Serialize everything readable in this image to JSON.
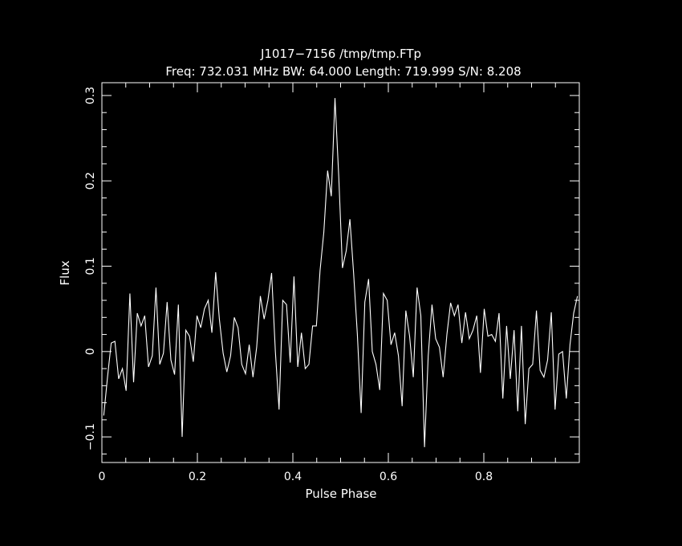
{
  "chart_data": {
    "type": "line",
    "title": "J1017−7156 /tmp/tmp.FTp",
    "subtitle": "Freq: 732.031 MHz BW: 64.000 Length: 719.999 S/N: 8.208",
    "xlabel": "Pulse Phase",
    "ylabel": "Flux",
    "xlim": [
      0,
      1
    ],
    "ylim": [
      -0.13,
      0.315
    ],
    "xticks": [
      0,
      0.2,
      0.4,
      0.6,
      0.8
    ],
    "xtick_labels": [
      "0",
      "0.2",
      "0.4",
      "0.6",
      "0.8"
    ],
    "yticks": [
      -0.1,
      0,
      0.1,
      0.2,
      0.3
    ],
    "ytick_labels": [
      "−0.1",
      "0",
      "0.1",
      "0.2",
      "0.3"
    ],
    "grid": false,
    "colors": {
      "background": "#000000",
      "foreground": "#ffffff"
    },
    "series": [
      {
        "x": [
          0.0039,
          0.0117,
          0.0195,
          0.0273,
          0.0352,
          0.043,
          0.0508,
          0.0586,
          0.0664,
          0.0742,
          0.082,
          0.0898,
          0.0977,
          0.1055,
          0.1133,
          0.1211,
          0.1289,
          0.1367,
          0.1445,
          0.1523,
          0.1602,
          0.168,
          0.1758,
          0.1836,
          0.1914,
          0.1992,
          0.207,
          0.2148,
          0.2227,
          0.2305,
          0.2383,
          0.2461,
          0.2539,
          0.2617,
          0.2695,
          0.2773,
          0.2852,
          0.293,
          0.3008,
          0.3086,
          0.3164,
          0.3242,
          0.332,
          0.3398,
          0.3477,
          0.3555,
          0.3633,
          0.3711,
          0.3789,
          0.3867,
          0.3945,
          0.4023,
          0.4102,
          0.418,
          0.4258,
          0.4336,
          0.4414,
          0.4492,
          0.457,
          0.4648,
          0.4727,
          0.4805,
          0.4883,
          0.4961,
          0.5039,
          0.5117,
          0.5195,
          0.5273,
          0.5352,
          0.543,
          0.5508,
          0.5586,
          0.5664,
          0.5742,
          0.582,
          0.5898,
          0.5977,
          0.6055,
          0.6133,
          0.6211,
          0.6289,
          0.6367,
          0.6445,
          0.6523,
          0.6602,
          0.668,
          0.6758,
          0.6836,
          0.6914,
          0.6992,
          0.707,
          0.7148,
          0.7227,
          0.7305,
          0.7383,
          0.7461,
          0.7539,
          0.7617,
          0.7695,
          0.7773,
          0.7852,
          0.793,
          0.8008,
          0.8086,
          0.8164,
          0.8242,
          0.832,
          0.8398,
          0.8477,
          0.8555,
          0.8633,
          0.8711,
          0.8789,
          0.8867,
          0.8945,
          0.9023,
          0.9102,
          0.918,
          0.9258,
          0.9336,
          0.9414,
          0.9492,
          0.957,
          0.9648,
          0.9727,
          0.9805,
          0.9883,
          0.9961
        ],
        "values": [
          -0.075,
          -0.03,
          0.01,
          0.012,
          -0.032,
          -0.02,
          -0.046,
          0.068,
          -0.036,
          0.045,
          0.03,
          0.042,
          -0.018,
          -0.005,
          0.075,
          -0.015,
          -0.002,
          0.058,
          -0.01,
          -0.027,
          0.055,
          -0.1,
          0.025,
          0.018,
          -0.012,
          0.042,
          0.028,
          0.05,
          0.06,
          0.022,
          0.093,
          0.038,
          -0.002,
          -0.024,
          -0.005,
          0.04,
          0.028,
          -0.015,
          -0.026,
          0.008,
          -0.03,
          0.005,
          0.065,
          0.038,
          0.06,
          0.092,
          0.0,
          -0.068,
          0.06,
          0.055,
          -0.013,
          0.088,
          -0.018,
          0.022,
          -0.02,
          -0.015,
          0.03,
          0.03,
          0.095,
          0.14,
          0.212,
          0.182,
          0.297,
          0.205,
          0.098,
          0.118,
          0.155,
          0.092,
          0.02,
          -0.072,
          0.058,
          0.085,
          0.0,
          -0.015,
          -0.045,
          0.068,
          0.06,
          0.008,
          0.022,
          -0.005,
          -0.064,
          0.048,
          0.018,
          -0.03,
          0.075,
          0.042,
          -0.112,
          -0.005,
          0.055,
          0.015,
          0.005,
          -0.03,
          0.02,
          0.057,
          0.042,
          0.055,
          0.01,
          0.046,
          0.015,
          0.025,
          0.042,
          -0.025,
          0.05,
          0.018,
          0.02,
          0.012,
          0.045,
          -0.055,
          0.03,
          -0.032,
          0.025,
          -0.07,
          0.03,
          -0.085,
          -0.02,
          -0.015,
          0.048,
          -0.022,
          -0.03,
          -0.01,
          0.046,
          -0.068,
          -0.003,
          0.0,
          -0.055,
          0.008,
          0.045,
          0.065
        ]
      }
    ]
  }
}
